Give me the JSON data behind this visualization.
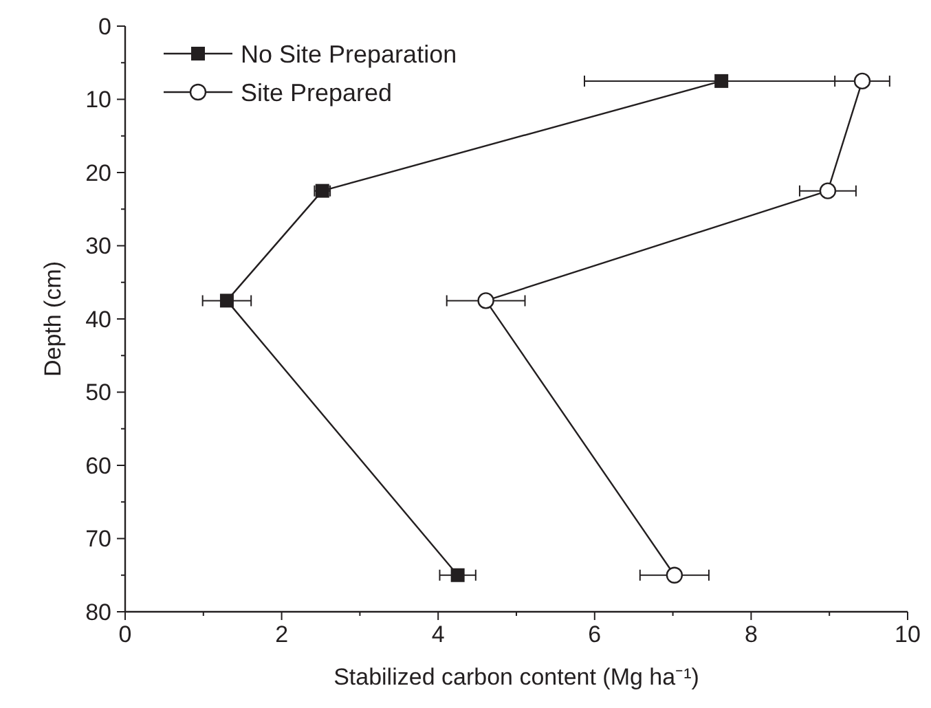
{
  "chart_data": {
    "type": "line",
    "xlabel": "Stabilized carbon content (Mg ha⁻¹)",
    "ylabel": "Depth (cm)",
    "xlim": [
      0,
      10
    ],
    "xticks": [
      0,
      {
        "value": 1,
        "label": null
      },
      2,
      {
        "value": 3,
        "label": null
      },
      4,
      {
        "value": 5,
        "label": null
      },
      6,
      {
        "value": 7,
        "label": null
      },
      8,
      {
        "value": 9,
        "label": null
      },
      10
    ],
    "ylim": [
      80,
      0
    ],
    "yticks": [
      0,
      {
        "value": 5,
        "label": null
      },
      10,
      {
        "value": 15,
        "label": null
      },
      20,
      {
        "value": 25,
        "label": null
      },
      30,
      {
        "value": 35,
        "label": null
      },
      40,
      {
        "value": 45,
        "label": null
      },
      50,
      {
        "value": 55,
        "label": null
      },
      60,
      {
        "value": 65,
        "label": null
      },
      70,
      {
        "value": 75,
        "label": null
      },
      80
    ],
    "grid": false,
    "legend": "top left",
    "line_style": "solid",
    "series": [
      {
        "name": "No Site Preparation",
        "color": "#231f20",
        "marker": "square",
        "x": [
          7.62,
          2.52,
          1.3,
          4.25
        ],
        "values": [
          7.5,
          22.5,
          37.5,
          75
        ],
        "xerrors": [
          1.75,
          0.1,
          0.31,
          0.23
        ]
      },
      {
        "name": "Site Prepared",
        "color": "#231f20",
        "marker": "circle",
        "x": [
          9.42,
          8.98,
          4.61,
          7.02
        ],
        "values": [
          7.5,
          22.5,
          37.5,
          75
        ],
        "xerrors": [
          0.35,
          0.36,
          0.5,
          0.44
        ]
      }
    ]
  }
}
